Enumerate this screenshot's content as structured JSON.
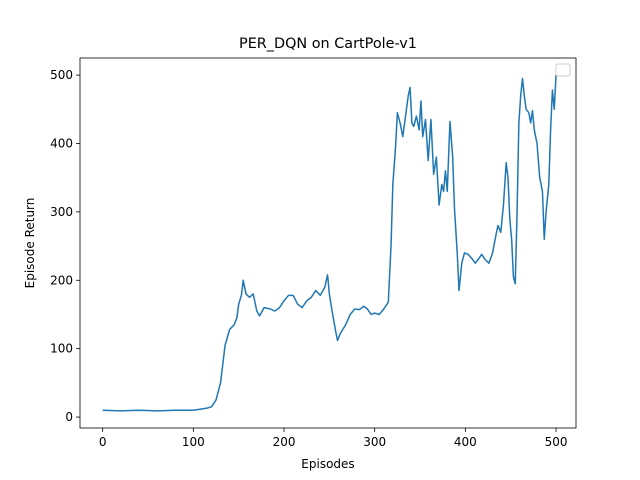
{
  "chart_data": {
    "type": "line",
    "title": "PER_DQN on CartPole-v1",
    "x_label": "Episodes",
    "y_label": "Episode Return",
    "xlim": [
      -25,
      522
    ],
    "ylim": [
      -16,
      525
    ],
    "xticks": [
      0,
      100,
      200,
      300,
      400,
      500
    ],
    "yticks": [
      0,
      100,
      200,
      300,
      400,
      500
    ],
    "series": [
      {
        "color": "#1f77b4",
        "x": [
          0,
          20,
          40,
          60,
          80,
          100,
          110,
          115,
          120,
          125,
          130,
          135,
          140,
          145,
          148,
          150,
          153,
          155,
          158,
          162,
          166,
          170,
          173,
          178,
          185,
          190,
          195,
          200,
          205,
          210,
          215,
          220,
          225,
          230,
          235,
          240,
          245,
          248,
          250,
          253,
          257,
          259,
          262,
          268,
          273,
          278,
          283,
          288,
          292,
          296,
          300,
          305,
          310,
          315,
          318,
          320,
          323,
          325,
          328,
          331,
          334,
          337,
          339,
          341,
          343,
          346,
          349,
          351,
          353,
          356,
          359,
          362,
          365,
          368,
          371,
          374,
          376,
          378,
          380,
          383,
          386,
          388,
          391,
          393,
          396,
          399,
          403,
          407,
          411,
          415,
          418,
          422,
          426,
          430,
          434,
          436,
          439,
          442,
          445,
          447,
          449,
          451,
          453,
          455,
          457,
          459,
          461,
          463,
          465,
          467,
          470,
          472,
          474,
          476,
          479,
          482,
          485,
          487,
          489,
          492,
          494,
          496,
          498,
          500
        ],
        "values": [
          10,
          9,
          10,
          9,
          10,
          10,
          12,
          13,
          15,
          25,
          50,
          105,
          128,
          135,
          145,
          165,
          178,
          200,
          180,
          175,
          180,
          155,
          148,
          160,
          158,
          155,
          160,
          170,
          178,
          178,
          165,
          160,
          170,
          175,
          185,
          178,
          190,
          208,
          180,
          155,
          125,
          112,
          122,
          135,
          150,
          158,
          157,
          162,
          158,
          150,
          152,
          150,
          158,
          168,
          250,
          340,
          395,
          445,
          430,
          410,
          440,
          470,
          482,
          430,
          425,
          440,
          420,
          462,
          410,
          435,
          375,
          435,
          355,
          380,
          310,
          340,
          330,
          360,
          330,
          432,
          380,
          305,
          240,
          185,
          225,
          240,
          238,
          232,
          225,
          232,
          238,
          230,
          225,
          240,
          268,
          280,
          270,
          310,
          372,
          350,
          290,
          260,
          205,
          195,
          300,
          430,
          470,
          495,
          470,
          450,
          445,
          430,
          448,
          420,
          400,
          350,
          330,
          260,
          300,
          340,
          420,
          478,
          450,
          500
        ]
      }
    ]
  }
}
